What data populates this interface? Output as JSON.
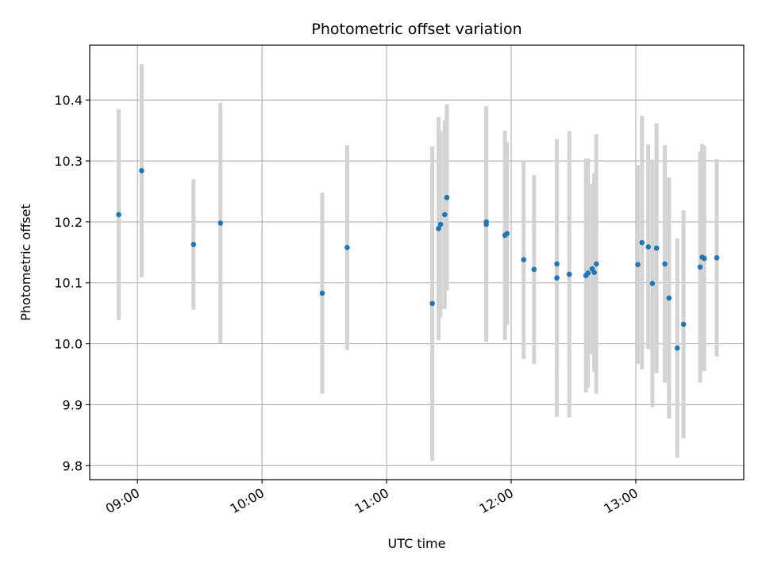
{
  "chart_data": {
    "type": "scatter",
    "title": "Photometric offset variation",
    "xlabel": "UTC time",
    "ylabel": "Photometric offset",
    "x_unit": "UTC time (HH:MM)",
    "xlim": [
      "08:37",
      "13:52"
    ],
    "ylim": [
      9.777,
      10.49
    ],
    "x_ticks": [
      "09:00",
      "10:00",
      "11:00",
      "12:00",
      "13:00"
    ],
    "y_ticks": [
      9.8,
      9.9,
      10.0,
      10.1,
      10.2,
      10.3,
      10.4
    ],
    "y_tick_labels": [
      "9.8",
      "9.9",
      "10.0",
      "10.1",
      "10.2",
      "10.3",
      "10.4"
    ],
    "grid": true,
    "legend": "none",
    "colors": {
      "marker": "#1f77b4",
      "errorbar": "#d3d3d3",
      "grid": "#b0b0b0"
    },
    "points": [
      {
        "x": "08:51",
        "y": 10.212,
        "err": 0.173
      },
      {
        "x": "09:02",
        "y": 10.284,
        "err": 0.175
      },
      {
        "x": "09:27",
        "y": 10.163,
        "err": 0.107
      },
      {
        "x": "09:40",
        "y": 10.198,
        "err": 0.197
      },
      {
        "x": "10:29",
        "y": 10.083,
        "err": 0.165
      },
      {
        "x": "10:41",
        "y": 10.158,
        "err": 0.168
      },
      {
        "x": "11:22",
        "y": 10.066,
        "err": 0.258
      },
      {
        "x": "11:25",
        "y": 10.189,
        "err": 0.183
      },
      {
        "x": "11:26",
        "y": 10.196,
        "err": 0.153
      },
      {
        "x": "11:28",
        "y": 10.212,
        "err": 0.155
      },
      {
        "x": "11:29",
        "y": 10.24,
        "err": 0.153
      },
      {
        "x": "11:48",
        "y": 10.196,
        "err": 0.193
      },
      {
        "x": "11:48",
        "y": 10.2,
        "err": 0.19
      },
      {
        "x": "11:57",
        "y": 10.178,
        "err": 0.172
      },
      {
        "x": "11:58",
        "y": 10.181,
        "err": 0.15
      },
      {
        "x": "12:06",
        "y": 10.138,
        "err": 0.163
      },
      {
        "x": "12:11",
        "y": 10.122,
        "err": 0.155
      },
      {
        "x": "12:22",
        "y": 10.108,
        "err": 0.228
      },
      {
        "x": "12:22",
        "y": 10.131,
        "err": 0.18
      },
      {
        "x": "12:28",
        "y": 10.114,
        "err": 0.235
      },
      {
        "x": "12:36",
        "y": 10.112,
        "err": 0.192
      },
      {
        "x": "12:37",
        "y": 10.116,
        "err": 0.188
      },
      {
        "x": "12:39",
        "y": 10.123,
        "err": 0.14
      },
      {
        "x": "12:40",
        "y": 10.117,
        "err": 0.163
      },
      {
        "x": "12:41",
        "y": 10.131,
        "err": 0.213
      },
      {
        "x": "13:01",
        "y": 10.13,
        "err": 0.163
      },
      {
        "x": "13:03",
        "y": 10.166,
        "err": 0.208
      },
      {
        "x": "13:06",
        "y": 10.159,
        "err": 0.168
      },
      {
        "x": "13:08",
        "y": 10.099,
        "err": 0.203
      },
      {
        "x": "13:10",
        "y": 10.157,
        "err": 0.205
      },
      {
        "x": "13:14",
        "y": 10.131,
        "err": 0.195
      },
      {
        "x": "13:16",
        "y": 10.075,
        "err": 0.198
      },
      {
        "x": "13:20",
        "y": 9.993,
        "err": 0.18
      },
      {
        "x": "13:23",
        "y": 10.032,
        "err": 0.187
      },
      {
        "x": "13:31",
        "y": 10.126,
        "err": 0.19
      },
      {
        "x": "13:32",
        "y": 10.142,
        "err": 0.186
      },
      {
        "x": "13:33",
        "y": 10.14,
        "err": 0.185
      },
      {
        "x": "13:39",
        "y": 10.141,
        "err": 0.162
      }
    ]
  }
}
